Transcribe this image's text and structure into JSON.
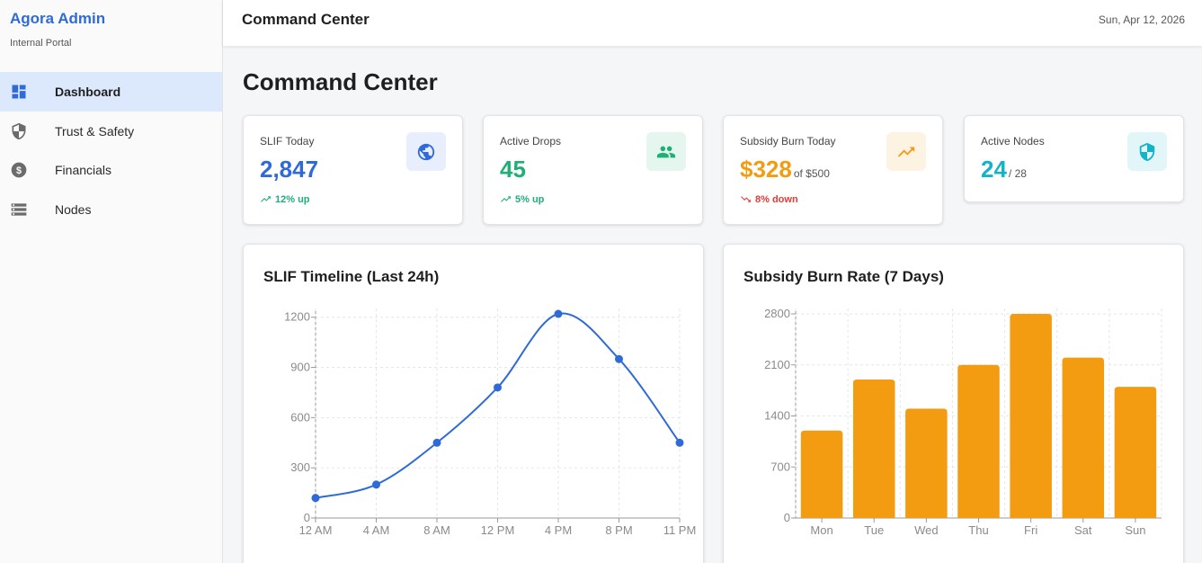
{
  "sidebar": {
    "brand": "Agora Admin",
    "subtitle": "Internal Portal",
    "items": [
      {
        "label": "Dashboard",
        "icon": "dashboard-icon",
        "active": true
      },
      {
        "label": "Trust & Safety",
        "icon": "shield-icon",
        "active": false
      },
      {
        "label": "Financials",
        "icon": "dollar-icon",
        "active": false
      },
      {
        "label": "Nodes",
        "icon": "server-list-icon",
        "active": false
      }
    ]
  },
  "header": {
    "title": "Command Center",
    "date": "Sun, Apr 12, 2026"
  },
  "page": {
    "title": "Command Center"
  },
  "stats": [
    {
      "label": "SLIF Today",
      "value": "2,847",
      "suffix": "",
      "trend": "12% up",
      "trend_dir": "up",
      "icon": "globe-icon",
      "color": "#2f6bd8",
      "icon_bg": "#e8eefb"
    },
    {
      "label": "Active Drops",
      "value": "45",
      "suffix": "",
      "trend": "5% up",
      "trend_dir": "up",
      "icon": "people-icon",
      "color": "#1faf77",
      "icon_bg": "#e4f6ee"
    },
    {
      "label": "Subsidy Burn Today",
      "value": "$328",
      "suffix": "of $500",
      "trend": "8% down",
      "trend_dir": "down",
      "icon": "trending-up-icon",
      "color": "#f39c12",
      "icon_bg": "#fdf3e3"
    },
    {
      "label": "Active Nodes",
      "value": "24",
      "suffix": "/ 28",
      "trend": "",
      "trend_dir": "",
      "icon": "shield-check-icon",
      "color": "#13b3c8",
      "icon_bg": "#e2f6f9"
    }
  ],
  "colors": {
    "trend_up": "#1faf77",
    "trend_down": "#e53935",
    "line": "#2f6bd8",
    "bar": "#f39c12"
  },
  "chart_data": [
    {
      "type": "line",
      "title": "SLIF Timeline (Last 24h)",
      "categories": [
        "12 AM",
        "4 AM",
        "8 AM",
        "12 PM",
        "4 PM",
        "8 PM",
        "11 PM"
      ],
      "series": [
        {
          "values": [
            120,
            200,
            450,
            780,
            1220,
            950,
            450
          ]
        }
      ],
      "yticks": [
        0,
        300,
        600,
        900,
        1200
      ],
      "ylim": [
        0,
        1220
      ],
      "grid": true
    },
    {
      "type": "bar",
      "title": "Subsidy Burn Rate (7 Days)",
      "categories": [
        "Mon",
        "Tue",
        "Wed",
        "Thu",
        "Fri",
        "Sat",
        "Sun"
      ],
      "values": [
        1200,
        1900,
        1500,
        2100,
        2800,
        2200,
        1800
      ],
      "yticks": [
        0,
        700,
        1400,
        2100,
        2800
      ],
      "ylim": [
        0,
        2800
      ],
      "grid": true
    }
  ]
}
